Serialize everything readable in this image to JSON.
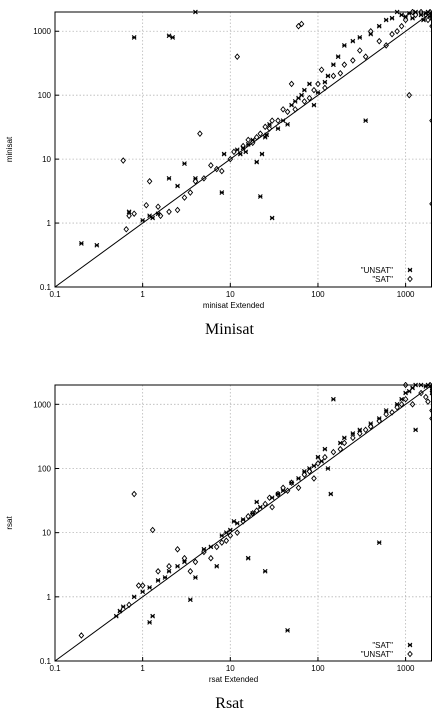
{
  "chart_data": [
    {
      "type": "scatter",
      "scale": "log-log",
      "caption": "Minisat",
      "xlabel": "minisat Extended",
      "ylabel": "minisat",
      "xlim": [
        0.1,
        2000
      ],
      "ylim": [
        0.1,
        2000
      ],
      "ticks": [
        0.1,
        1,
        10,
        100,
        1000
      ],
      "tick_labels": [
        "0.1",
        "1",
        "10",
        "100",
        "1000"
      ],
      "grid": true,
      "diagonal": "y = x",
      "legend_position": "bottom-right",
      "series": [
        {
          "name": "\"UNSAT\"",
          "marker": "x",
          "points": [
            [
              0.2,
              0.48
            ],
            [
              0.3,
              0.45
            ],
            [
              0.7,
              1.5
            ],
            [
              1.0,
              1.1
            ],
            [
              1.2,
              1.3
            ],
            [
              1.3,
              1.2
            ],
            [
              1.5,
              1.4
            ],
            [
              2.0,
              5.0
            ],
            [
              2.5,
              3.8
            ],
            [
              3.0,
              8.5
            ],
            [
              4.0,
              5.0
            ],
            [
              0.8,
              800
            ],
            [
              2.0,
              850
            ],
            [
              2.2,
              800
            ],
            [
              4.0,
              2000
            ],
            [
              8.0,
              3.0
            ],
            [
              8.5,
              12
            ],
            [
              12,
              14
            ],
            [
              13,
              12
            ],
            [
              14,
              15
            ],
            [
              15,
              13
            ],
            [
              16,
              17
            ],
            [
              18,
              20
            ],
            [
              20,
              9
            ],
            [
              22,
              2.6
            ],
            [
              23,
              12
            ],
            [
              25,
              22
            ],
            [
              26,
              24
            ],
            [
              28,
              35
            ],
            [
              30,
              1.2
            ],
            [
              35,
              30
            ],
            [
              40,
              40
            ],
            [
              45,
              35
            ],
            [
              50,
              70
            ],
            [
              55,
              80
            ],
            [
              60,
              90
            ],
            [
              65,
              100
            ],
            [
              70,
              120
            ],
            [
              80,
              150
            ],
            [
              90,
              70
            ],
            [
              100,
              110
            ],
            [
              120,
              160
            ],
            [
              130,
              200
            ],
            [
              150,
              300
            ],
            [
              170,
              400
            ],
            [
              200,
              600
            ],
            [
              250,
              700
            ],
            [
              300,
              800
            ],
            [
              350,
              40
            ],
            [
              400,
              900
            ],
            [
              500,
              1200
            ],
            [
              600,
              1500
            ],
            [
              700,
              1600
            ],
            [
              800,
              2000
            ],
            [
              900,
              1800
            ],
            [
              1000,
              1700
            ],
            [
              1100,
              1900
            ],
            [
              1200,
              1600
            ],
            [
              1300,
              2000
            ],
            [
              1500,
              1800
            ],
            [
              1600,
              1500
            ],
            [
              1700,
              1900
            ],
            [
              1800,
              2000
            ],
            [
              1900,
              1700
            ],
            [
              2000,
              1800
            ],
            [
              2000,
              1600
            ]
          ]
        },
        {
          "name": "\"SAT\"",
          "marker": "diamond",
          "points": [
            [
              0.6,
              9.5
            ],
            [
              0.65,
              0.8
            ],
            [
              0.7,
              1.3
            ],
            [
              0.8,
              1.4
            ],
            [
              1.1,
              1.9
            ],
            [
              1.2,
              4.5
            ],
            [
              1.5,
              1.8
            ],
            [
              1.6,
              1.3
            ],
            [
              2.0,
              1.5
            ],
            [
              2.5,
              1.6
            ],
            [
              3.0,
              2.5
            ],
            [
              3.5,
              3.0
            ],
            [
              4.0,
              4.5
            ],
            [
              4.5,
              25
            ],
            [
              5.0,
              5.0
            ],
            [
              6.0,
              8.0
            ],
            [
              7.0,
              7.0
            ],
            [
              8.0,
              6.5
            ],
            [
              10,
              10
            ],
            [
              11,
              13
            ],
            [
              12,
              400
            ],
            [
              14,
              16
            ],
            [
              16,
              20
            ],
            [
              18,
              18
            ],
            [
              20,
              22
            ],
            [
              22,
              25
            ],
            [
              25,
              32
            ],
            [
              28,
              30
            ],
            [
              30,
              40
            ],
            [
              35,
              40
            ],
            [
              40,
              60
            ],
            [
              45,
              55
            ],
            [
              50,
              150
            ],
            [
              55,
              60
            ],
            [
              60,
              1200
            ],
            [
              65,
              1300
            ],
            [
              70,
              80
            ],
            [
              80,
              90
            ],
            [
              90,
              120
            ],
            [
              100,
              150
            ],
            [
              110,
              250
            ],
            [
              120,
              130
            ],
            [
              150,
              200
            ],
            [
              180,
              220
            ],
            [
              200,
              300
            ],
            [
              250,
              350
            ],
            [
              300,
              500
            ],
            [
              350,
              400
            ],
            [
              400,
              1000
            ],
            [
              500,
              700
            ],
            [
              600,
              600
            ],
            [
              700,
              900
            ],
            [
              800,
              1000
            ],
            [
              900,
              1200
            ],
            [
              1000,
              1500
            ],
            [
              1100,
              100
            ],
            [
              1200,
              2000
            ],
            [
              1300,
              1800
            ],
            [
              1500,
              2000
            ],
            [
              1700,
              1800
            ],
            [
              1800,
              1500
            ],
            [
              1900,
              2000
            ],
            [
              2000,
              40
            ],
            [
              2000,
              2.0
            ],
            [
              2000,
              1200
            ]
          ]
        }
      ]
    },
    {
      "type": "scatter",
      "scale": "log-log",
      "caption": "Rsat",
      "xlabel": "rsat Extended",
      "ylabel": "rsat",
      "xlim": [
        0.1,
        2000
      ],
      "ylim": [
        0.1,
        2000
      ],
      "ticks": [
        0.1,
        1,
        10,
        100,
        1000
      ],
      "tick_labels": [
        "0.1",
        "1",
        "10",
        "100",
        "1000"
      ],
      "grid": true,
      "diagonal": "y = x",
      "legend_position": "bottom-right",
      "series": [
        {
          "name": "\"SAT\"",
          "marker": "x",
          "points": [
            [
              0.5,
              0.5
            ],
            [
              0.55,
              0.6
            ],
            [
              0.6,
              0.7
            ],
            [
              0.8,
              1.0
            ],
            [
              1.0,
              1.2
            ],
            [
              1.2,
              1.4
            ],
            [
              1.2,
              0.4
            ],
            [
              1.3,
              0.5
            ],
            [
              1.5,
              1.8
            ],
            [
              1.8,
              2.0
            ],
            [
              2.0,
              2.5
            ],
            [
              2.5,
              3.0
            ],
            [
              3.0,
              3.5
            ],
            [
              3.5,
              0.9
            ],
            [
              4.0,
              2.0
            ],
            [
              5.0,
              5.5
            ],
            [
              6.0,
              6.0
            ],
            [
              7.0,
              3.0
            ],
            [
              8.0,
              9.0
            ],
            [
              9.0,
              10
            ],
            [
              10,
              11
            ],
            [
              11,
              15
            ],
            [
              12,
              14
            ],
            [
              14,
              16
            ],
            [
              16,
              4.0
            ],
            [
              18,
              20
            ],
            [
              20,
              30
            ],
            [
              22,
              25
            ],
            [
              25,
              2.5
            ],
            [
              30,
              35
            ],
            [
              35,
              40
            ],
            [
              40,
              45
            ],
            [
              45,
              0.3
            ],
            [
              50,
              60
            ],
            [
              60,
              70
            ],
            [
              70,
              90
            ],
            [
              80,
              100
            ],
            [
              90,
              110
            ],
            [
              100,
              150
            ],
            [
              110,
              130
            ],
            [
              120,
              200
            ],
            [
              130,
              100
            ],
            [
              140,
              40
            ],
            [
              150,
              1200
            ],
            [
              180,
              250
            ],
            [
              200,
              300
            ],
            [
              250,
              350
            ],
            [
              300,
              400
            ],
            [
              400,
              500
            ],
            [
              500,
              7.0
            ],
            [
              500,
              600
            ],
            [
              600,
              800
            ],
            [
              800,
              1000
            ],
            [
              900,
              1200
            ],
            [
              1000,
              1500
            ],
            [
              1100,
              1600
            ],
            [
              1200,
              1800
            ],
            [
              1300,
              2000
            ],
            [
              1500,
              2000
            ],
            [
              1700,
              1900
            ],
            [
              1800,
              2000
            ],
            [
              2000,
              1700
            ],
            [
              2000,
              1500
            ],
            [
              1300,
              400
            ]
          ]
        },
        {
          "name": "\"UNSAT\"",
          "marker": "diamond",
          "points": [
            [
              0.2,
              0.25
            ],
            [
              0.7,
              0.75
            ],
            [
              0.8,
              40
            ],
            [
              0.9,
              1.5
            ],
            [
              1.0,
              1.5
            ],
            [
              1.3,
              11
            ],
            [
              1.5,
              2.5
            ],
            [
              2.0,
              3.0
            ],
            [
              2.5,
              5.5
            ],
            [
              3.0,
              4.0
            ],
            [
              3.5,
              2.5
            ],
            [
              4.0,
              3.5
            ],
            [
              5.0,
              5.0
            ],
            [
              6.0,
              4.0
            ],
            [
              7.0,
              6.0
            ],
            [
              8.0,
              7.0
            ],
            [
              9.0,
              7.5
            ],
            [
              10,
              9.0
            ],
            [
              12,
              10
            ],
            [
              14,
              15
            ],
            [
              16,
              18
            ],
            [
              18,
              20
            ],
            [
              20,
              22
            ],
            [
              25,
              28
            ],
            [
              28,
              35
            ],
            [
              30,
              25
            ],
            [
              35,
              40
            ],
            [
              40,
              50
            ],
            [
              45,
              45
            ],
            [
              50,
              60
            ],
            [
              60,
              50
            ],
            [
              70,
              80
            ],
            [
              80,
              90
            ],
            [
              90,
              70
            ],
            [
              100,
              120
            ],
            [
              120,
              150
            ],
            [
              150,
              180
            ],
            [
              180,
              200
            ],
            [
              200,
              250
            ],
            [
              250,
              300
            ],
            [
              300,
              350
            ],
            [
              350,
              400
            ],
            [
              400,
              450
            ],
            [
              500,
              550
            ],
            [
              600,
              700
            ],
            [
              700,
              750
            ],
            [
              800,
              900
            ],
            [
              900,
              1000
            ],
            [
              1000,
              1200
            ],
            [
              1200,
              1000
            ],
            [
              1500,
              1500
            ],
            [
              1700,
              1300
            ],
            [
              1800,
              1100
            ],
            [
              1900,
              2000
            ],
            [
              2000,
              800
            ],
            [
              2000,
              1900
            ],
            [
              2000,
              600
            ],
            [
              1000,
              2000
            ]
          ]
        }
      ]
    }
  ]
}
